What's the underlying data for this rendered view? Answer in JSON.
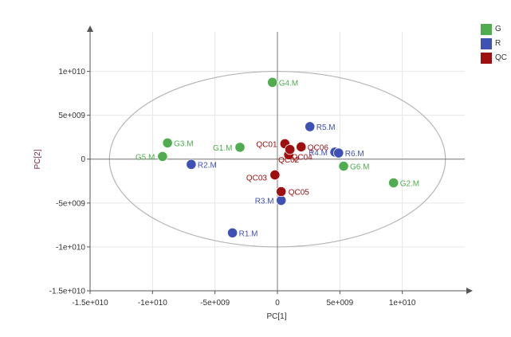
{
  "chart_data": {
    "type": "scatter",
    "title": "",
    "xlabel": "PC[1]",
    "ylabel": "PC[2]",
    "xlim": [
      -15000000000.0,
      15000000000.0
    ],
    "ylim": [
      -15000000000.0,
      14500000000.0
    ],
    "x_ticks": [
      -15000000000.0,
      -10000000000.0,
      -5000000000.0,
      0,
      5000000000.0,
      10000000000.0
    ],
    "x_tick_labels": [
      "-1.5e+010",
      "-1e+010",
      "-5e+009",
      "0",
      "5e+009",
      "1e+010"
    ],
    "y_ticks": [
      10000000000.0,
      5000000000.0,
      0,
      -5000000000.0,
      -10000000000.0,
      -15000000000.0
    ],
    "y_tick_labels": [
      "1e+010",
      "5e+009",
      "0",
      "-5e+009",
      "-1e+010",
      "-1.5e+010"
    ],
    "grid": true,
    "legend_position": "top-right",
    "ellipse": {
      "center": [
        0,
        0
      ],
      "rx": 13450000000.0,
      "ry": 10000000000.0
    },
    "colors": {
      "G": "#4fad4f",
      "R": "#3f51b5",
      "QC": "#a00f0f"
    },
    "series": [
      {
        "name": "G",
        "points": [
          {
            "label": "G1.M",
            "x": -3000000000.0,
            "y": 1350000000.0
          },
          {
            "label": "G2.M",
            "x": 9300000000.0,
            "y": -2700000000.0
          },
          {
            "label": "G3.M",
            "x": -8800000000.0,
            "y": 1850000000.0
          },
          {
            "label": "G4.M",
            "x": -400000000.0,
            "y": 8750000000.0
          },
          {
            "label": "G5.M",
            "x": -9200000000.0,
            "y": 300000000.0
          },
          {
            "label": "G6.M",
            "x": 5300000000.0,
            "y": -800000000.0
          }
        ]
      },
      {
        "name": "R",
        "points": [
          {
            "label": "R1.M",
            "x": -3600000000.0,
            "y": -8400000000.0
          },
          {
            "label": "R2.M",
            "x": -6900000000.0,
            "y": -600000000.0
          },
          {
            "label": "R3.M",
            "x": 300000000.0,
            "y": -4700000000.0
          },
          {
            "label": "R4.M",
            "x": 4600000000.0,
            "y": 800000000.0
          },
          {
            "label": "R5.M",
            "x": 2600000000.0,
            "y": 3700000000.0
          },
          {
            "label": "R6.M",
            "x": 4900000000.0,
            "y": 700000000.0
          }
        ]
      },
      {
        "name": "QC",
        "points": [
          {
            "label": "QC01",
            "x": 600000000.0,
            "y": 1750000000.0
          },
          {
            "label": "QC02",
            "x": 900000000.0,
            "y": 500000000.0
          },
          {
            "label": "QC03",
            "x": -200000000.0,
            "y": -1800000000.0
          },
          {
            "label": "QC04",
            "x": 1000000000.0,
            "y": 1100000000.0
          },
          {
            "label": "QC05",
            "x": 300000000.0,
            "y": -3700000000.0
          },
          {
            "label": "QC06",
            "x": 1900000000.0,
            "y": 1400000000.0
          }
        ]
      }
    ]
  }
}
